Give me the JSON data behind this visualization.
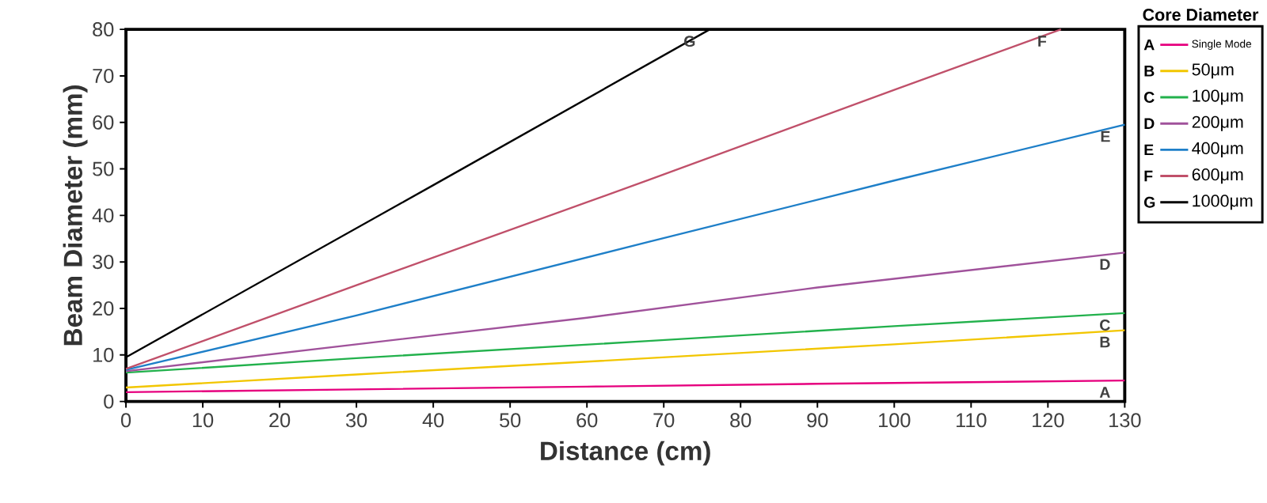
{
  "chart_data": {
    "type": "line",
    "xlabel": "Distance (cm)",
    "ylabel": "Beam Diameter (mm)",
    "legend_title": "Core Diameter",
    "xlim": [
      0,
      130
    ],
    "ylim": [
      0,
      80
    ],
    "xticks": [
      0,
      10,
      20,
      30,
      40,
      50,
      60,
      70,
      80,
      90,
      100,
      110,
      120,
      130
    ],
    "yticks": [
      0,
      10,
      20,
      30,
      40,
      50,
      60,
      70,
      80
    ],
    "grid": false,
    "legend": "right",
    "marker": "none",
    "line_style": "solid",
    "series": [
      {
        "name": "Single Mode",
        "color": "#e6007e",
        "x": [
          0,
          30,
          60,
          90,
          130
        ],
        "values": [
          2,
          2.6,
          3.2,
          3.8,
          4.5
        ]
      },
      {
        "name": "50μm",
        "color": "#f2c600",
        "x": [
          0,
          30,
          68,
          100,
          130
        ],
        "values": [
          3,
          5.8,
          9.3,
          12.3,
          15.3
        ]
      },
      {
        "name": "100μm",
        "color": "#22b14c",
        "x": [
          0,
          30,
          68,
          100,
          130
        ],
        "values": [
          6.2,
          9.3,
          13,
          16.2,
          19
        ]
      },
      {
        "name": "200μm",
        "color": "#a0529b",
        "x": [
          0,
          30,
          60,
          90,
          130
        ],
        "values": [
          6.5,
          12.3,
          18,
          24.5,
          32
        ]
      },
      {
        "name": "400μm",
        "color": "#1e7fc8",
        "x": [
          0,
          30,
          68,
          100,
          130
        ],
        "values": [
          6.8,
          18.5,
          34.3,
          47.5,
          59.5
        ]
      },
      {
        "name": "600μm",
        "color": "#c0506a",
        "x": [
          0,
          30,
          68,
          100,
          121.7
        ],
        "values": [
          7,
          25,
          47.6,
          67,
          80
        ]
      },
      {
        "name": "1000μm",
        "color": "#000000",
        "x": [
          0,
          40,
          76
        ],
        "values": [
          9.5,
          46.5,
          80
        ]
      }
    ],
    "annotations": [
      "A",
      "B",
      "C",
      "D",
      "E",
      "F",
      "G"
    ]
  }
}
